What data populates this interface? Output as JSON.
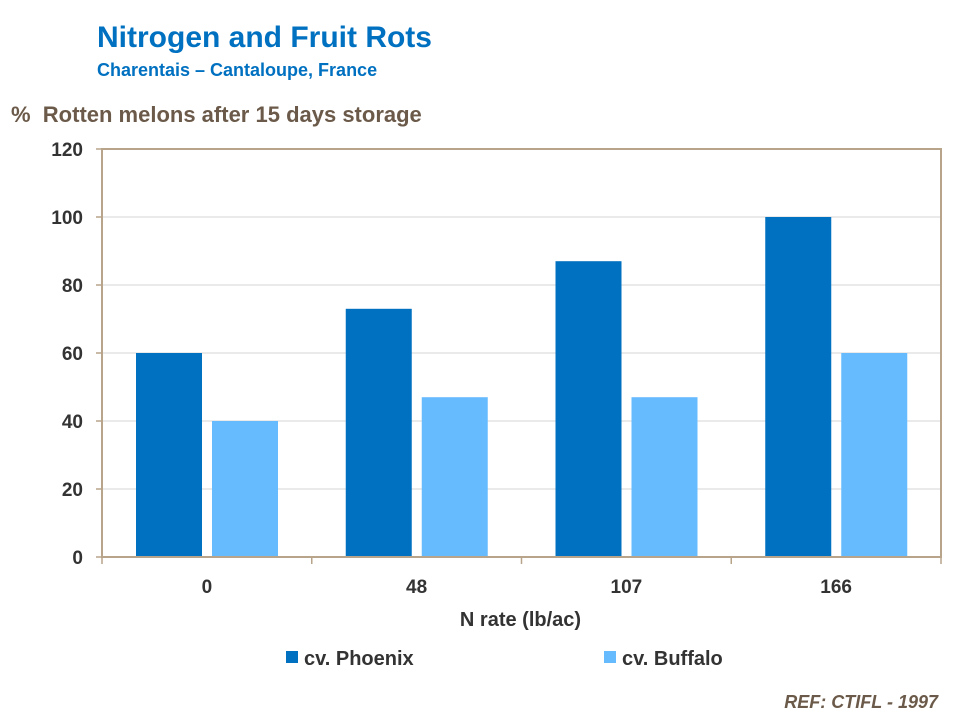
{
  "title": "Nitrogen and Fruit Rots",
  "subtitle": "Charentais – Cantaloupe, France",
  "reference": "REF: CTIFL - 1997",
  "colors": {
    "phoenix": "#0070c0",
    "buffalo": "#66bbff",
    "frame": "#b8a48a"
  },
  "chart_data": {
    "type": "bar",
    "ylabel": "%  Rotten melons after 15 days storage",
    "xlabel": "N rate (lb/ac)",
    "categories": [
      "0",
      "48",
      "107",
      "166"
    ],
    "series": [
      {
        "name": "cv. Phoenix",
        "values": [
          60,
          73,
          87,
          100
        ]
      },
      {
        "name": "cv. Buffalo",
        "values": [
          40,
          47,
          47,
          60
        ]
      }
    ],
    "ylim": [
      0,
      120
    ],
    "yticks": [
      0,
      20,
      40,
      60,
      80,
      100,
      120
    ],
    "grid": true,
    "legend": "bottom"
  }
}
